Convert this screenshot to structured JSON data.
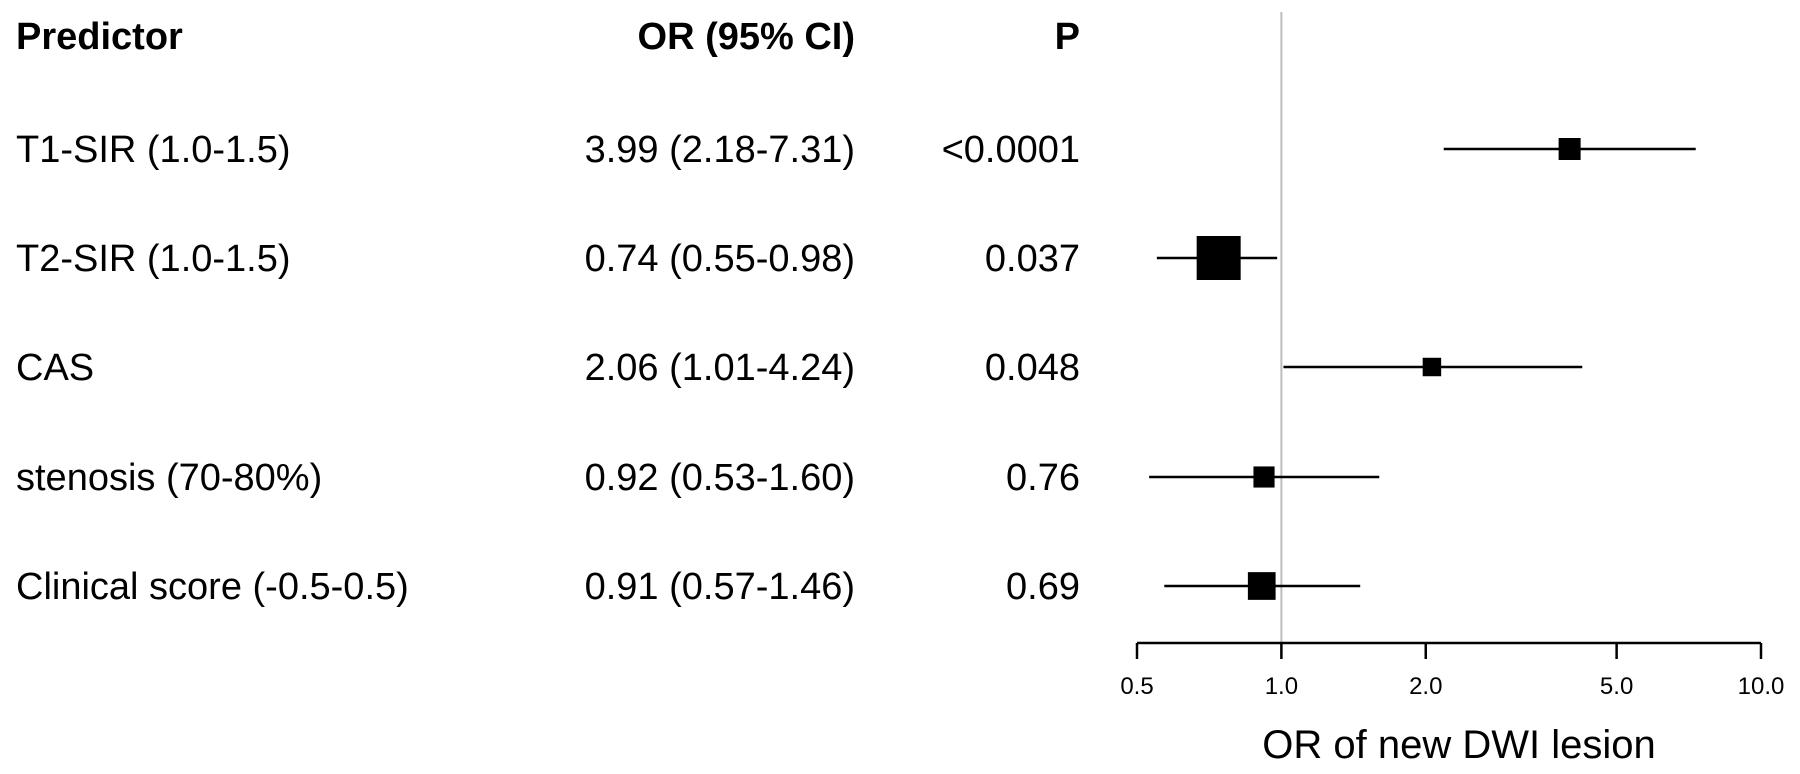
{
  "table": {
    "headers": {
      "predictor": "Predictor",
      "or_ci": "OR (95% CI)",
      "p": "P"
    },
    "rows": [
      {
        "predictor": "T1-SIR (1.0-1.5)",
        "or_ci": "3.99 (2.18-7.31)",
        "p": "<0.0001"
      },
      {
        "predictor": "T2-SIR (1.0-1.5)",
        "or_ci": "0.74 (0.55-0.98)",
        "p": "0.037"
      },
      {
        "predictor": "CAS",
        "or_ci": "2.06 (1.01-4.24)",
        "p": "0.048"
      },
      {
        "predictor": "stenosis (70-80%)",
        "or_ci": "0.92 (0.53-1.60)",
        "p": "0.76"
      },
      {
        "predictor": "Clinical score (-0.5-0.5)",
        "or_ci": "0.91 (0.57-1.46)",
        "p": "0.69"
      }
    ]
  },
  "chart_data": {
    "type": "forest",
    "xlabel": "OR of new DWI lesion",
    "x_scale": "log",
    "xlim": [
      0.5,
      10.0
    ],
    "reference_line": 1.0,
    "xticks": [
      0.5,
      1.0,
      2.0,
      5.0,
      10.0
    ],
    "xtick_labels": [
      "0.5",
      "1.0",
      "2.0",
      "5.0",
      "10.0"
    ],
    "series": [
      {
        "or": 3.99,
        "lower": 2.18,
        "upper": 7.31,
        "weight": 0.5
      },
      {
        "or": 0.74,
        "lower": 0.55,
        "upper": 0.98,
        "weight": 1.0
      },
      {
        "or": 2.06,
        "lower": 1.01,
        "upper": 4.24,
        "weight": 0.42
      },
      {
        "or": 0.92,
        "lower": 0.53,
        "upper": 1.6,
        "weight": 0.48
      },
      {
        "or": 0.91,
        "lower": 0.57,
        "upper": 1.46,
        "weight": 0.63
      }
    ],
    "colors": {
      "marker": "#000000",
      "reference_line": "#bdbdbd",
      "axis": "#000000"
    }
  }
}
